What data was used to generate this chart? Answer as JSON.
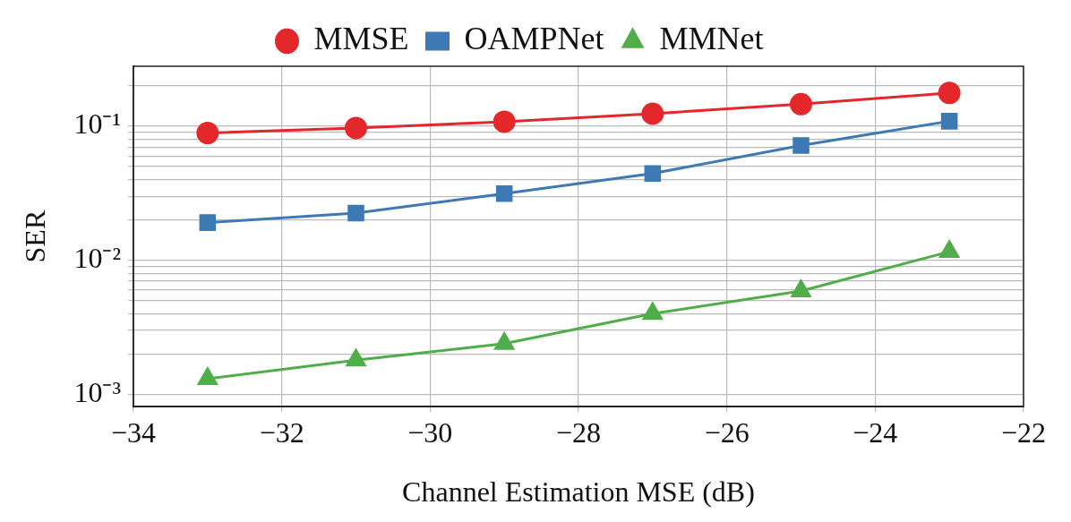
{
  "chart_data": {
    "type": "line",
    "xlabel": "Channel Estimation MSE (dB)",
    "ylabel": "SER",
    "log": "y",
    "grid": true,
    "legend": "top",
    "line_style": "solid",
    "x": [
      -33,
      -31,
      -29,
      -27,
      -25,
      -23
    ],
    "xlim": [
      -34,
      -22
    ],
    "xticks": [
      {
        "value": -34,
        "label": "−34"
      },
      {
        "value": -32,
        "label": "−32"
      },
      {
        "value": -30,
        "label": "−30"
      },
      {
        "value": -28,
        "label": "−28"
      },
      {
        "value": -26,
        "label": "−26"
      },
      {
        "value": -24,
        "label": "−24"
      },
      {
        "value": -22,
        "label": "−22"
      }
    ],
    "ylim": [
      0.00081,
      0.28
    ],
    "yticks": [
      {
        "value": 0.001,
        "label": "10⁻³"
      },
      {
        "value": 0.002,
        "label": null
      },
      {
        "value": 0.003,
        "label": null
      },
      {
        "value": 0.004,
        "label": null
      },
      {
        "value": 0.005,
        "label": null
      },
      {
        "value": 0.006,
        "label": null
      },
      {
        "value": 0.007,
        "label": null
      },
      {
        "value": 0.008,
        "label": null
      },
      {
        "value": 0.009,
        "label": null
      },
      {
        "value": 0.01,
        "label": "10⁻²"
      },
      {
        "value": 0.02,
        "label": null
      },
      {
        "value": 0.03,
        "label": null
      },
      {
        "value": 0.04,
        "label": null
      },
      {
        "value": 0.05,
        "label": null
      },
      {
        "value": 0.06,
        "label": null
      },
      {
        "value": 0.07,
        "label": null
      },
      {
        "value": 0.08,
        "label": null
      },
      {
        "value": 0.09,
        "label": null
      },
      {
        "value": 0.1,
        "label": "10⁻¹"
      },
      {
        "value": 0.2,
        "label": null
      }
    ],
    "series": [
      {
        "name": "MMSE",
        "color": "#e3272b",
        "marker": "circle",
        "values": [
          0.089,
          0.097,
          0.108,
          0.124,
          0.146,
          0.177
        ]
      },
      {
        "name": "OAMPNet",
        "color": "#3d7ab5",
        "marker": "square",
        "values": [
          0.0191,
          0.0225,
          0.0314,
          0.0444,
          0.0718,
          0.109
        ]
      },
      {
        "name": "MMNet",
        "color": "#4fae4a",
        "marker": "triangle",
        "values": [
          0.00131,
          0.0018,
          0.00239,
          0.004,
          0.0059,
          0.0116
        ]
      }
    ]
  }
}
